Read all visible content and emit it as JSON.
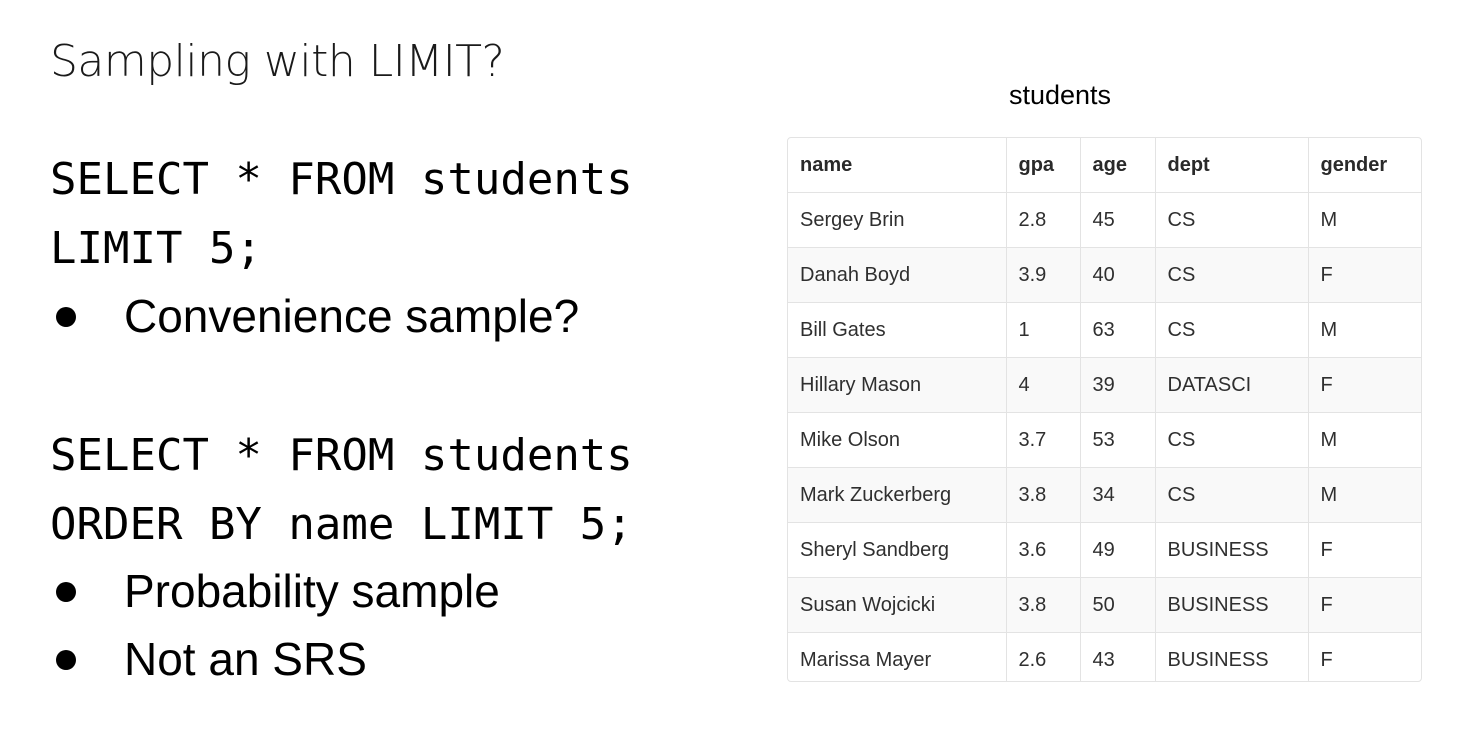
{
  "slide": {
    "title": "Sampling with LIMIT?"
  },
  "query1": {
    "line1": "SELECT * FROM students",
    "line2": "LIMIT 5;",
    "bullets": [
      "Convenience sample?"
    ]
  },
  "query2": {
    "line1": "SELECT * FROM students",
    "line2": "ORDER BY name LIMIT 5;",
    "bullets": [
      "Probability sample",
      "Not an SRS"
    ]
  },
  "table": {
    "caption": "students",
    "columns": [
      "name",
      "gpa",
      "age",
      "dept",
      "gender"
    ],
    "rows": [
      [
        "Sergey Brin",
        "2.8",
        "45",
        "CS",
        "M"
      ],
      [
        "Danah Boyd",
        "3.9",
        "40",
        "CS",
        "F"
      ],
      [
        "Bill Gates",
        "1",
        "63",
        "CS",
        "M"
      ],
      [
        "Hillary Mason",
        "4",
        "39",
        "DATASCI",
        "F"
      ],
      [
        "Mike Olson",
        "3.7",
        "53",
        "CS",
        "M"
      ],
      [
        "Mark Zuckerberg",
        "3.8",
        "34",
        "CS",
        "M"
      ],
      [
        "Sheryl Sandberg",
        "3.6",
        "49",
        "BUSINESS",
        "F"
      ],
      [
        "Susan Wojcicki",
        "3.8",
        "50",
        "BUSINESS",
        "F"
      ],
      [
        "Marissa Mayer",
        "2.6",
        "43",
        "BUSINESS",
        "F"
      ]
    ]
  }
}
